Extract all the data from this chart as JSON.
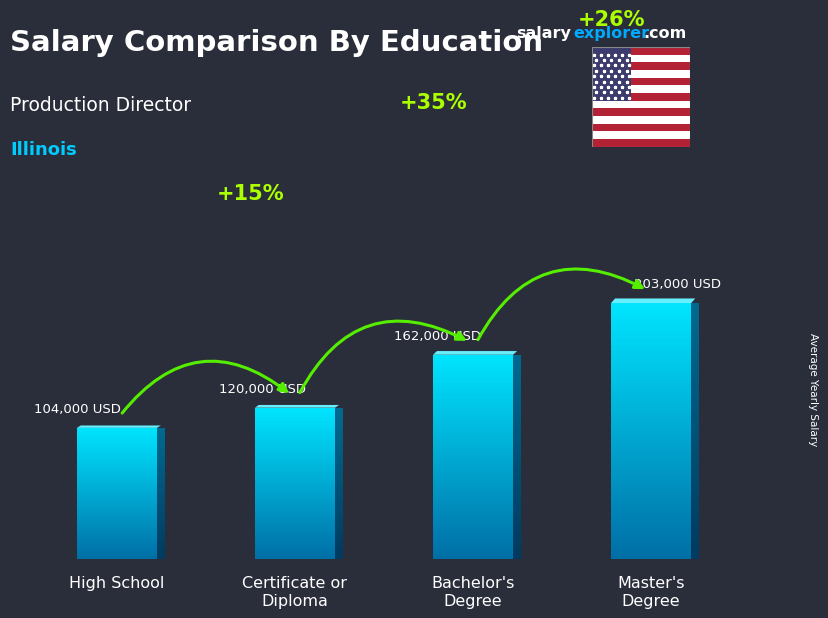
{
  "title": "Salary Comparison By Education",
  "subtitle": "Production Director",
  "location": "Illinois",
  "ylabel": "Average Yearly Salary",
  "categories": [
    "High School",
    "Certificate or\nDiploma",
    "Bachelor's\nDegree",
    "Master's\nDegree"
  ],
  "values": [
    104000,
    120000,
    162000,
    203000
  ],
  "value_labels": [
    "104,000 USD",
    "120,000 USD",
    "162,000 USD",
    "203,000 USD"
  ],
  "pct_labels": [
    "+15%",
    "+35%",
    "+26%"
  ],
  "bar_color_top": "#00e5ff",
  "bar_color_bottom": "#006fa6",
  "bar_side_color": "#004f7a",
  "bar_top_color": "#55f0ff",
  "bg_color": "#2a2d3a",
  "title_color": "#ffffff",
  "subtitle_color": "#ffffff",
  "location_color": "#00ccff",
  "value_label_color": "#ffffff",
  "pct_color": "#aaff00",
  "arrow_color": "#55ee00",
  "brand_salary_color": "#ffffff",
  "brand_explorer_color": "#00aaff",
  "brand_com_color": "#ffffff",
  "ylim": [
    0,
    250000
  ],
  "bar_width": 0.45
}
